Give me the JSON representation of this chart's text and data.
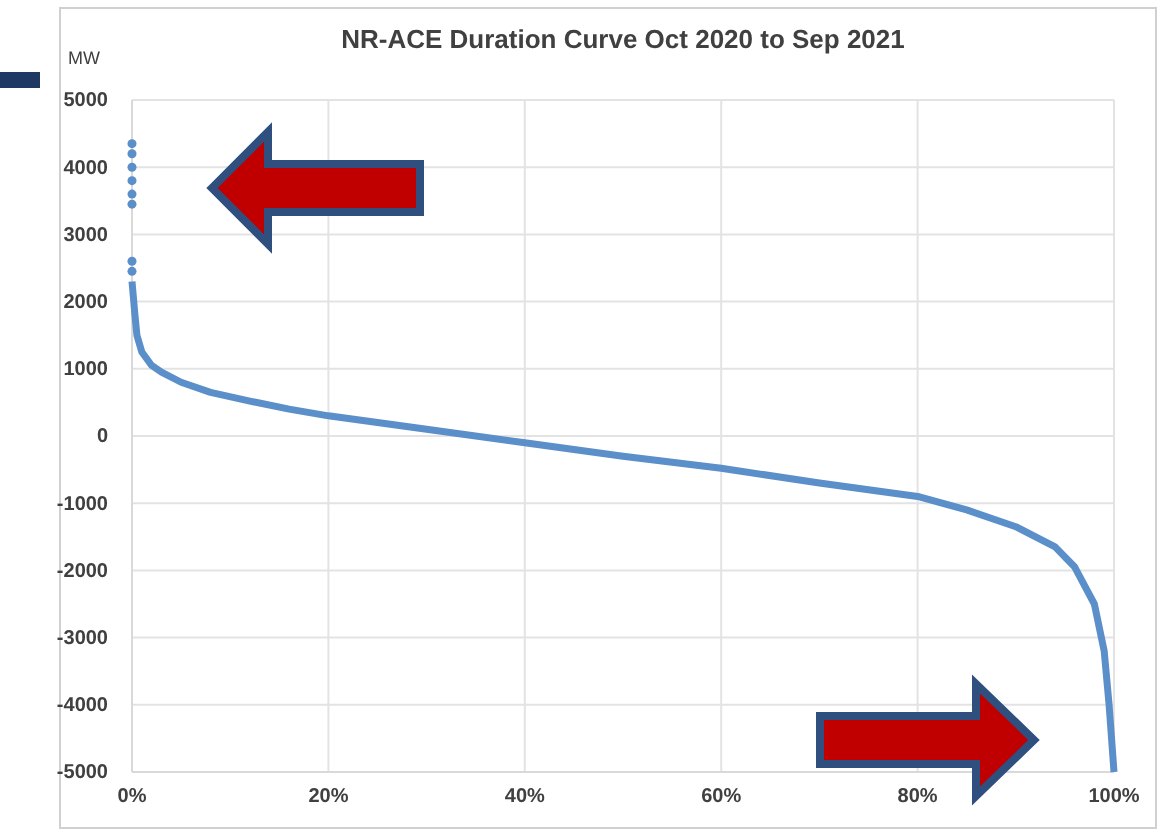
{
  "chart_data": {
    "type": "line",
    "title": "NR-ACE Duration Curve Oct 2020 to Sep 2021",
    "ylabel": "MW",
    "xlim": [
      0,
      100
    ],
    "xticks": [
      {
        "value": 0,
        "label": "0%"
      },
      {
        "value": 20,
        "label": "20%"
      },
      {
        "value": 40,
        "label": "40%"
      },
      {
        "value": 60,
        "label": "60%"
      },
      {
        "value": 80,
        "label": "80%"
      },
      {
        "value": 100,
        "label": "100%"
      }
    ],
    "ylim": [
      -5000,
      5000
    ],
    "yticks": [
      -5000,
      -4000,
      -3000,
      -2000,
      -1000,
      0,
      1000,
      2000,
      3000,
      4000,
      5000
    ],
    "grid": true,
    "line_style": "solid",
    "series": [
      {
        "color": "#5b8fc9",
        "marker": "none",
        "x": [
          0,
          0.3,
          0.5,
          1,
          2,
          3,
          5,
          8,
          12,
          16,
          20,
          30,
          40,
          50,
          60,
          70,
          80,
          85,
          90,
          94,
          96,
          98,
          99,
          99.5,
          100
        ],
        "values": [
          2300,
          1800,
          1500,
          1250,
          1050,
          950,
          800,
          650,
          520,
          400,
          300,
          100,
          -100,
          -300,
          -480,
          -700,
          -900,
          -1100,
          -1350,
          -1650,
          -1950,
          -2500,
          -3200,
          -4000,
          -5000
        ]
      },
      {
        "type": "scatter",
        "color": "#5b8fc9",
        "marker": "circle",
        "x": [
          0,
          0,
          0,
          0,
          0,
          0,
          0,
          0
        ],
        "values": [
          4350,
          4200,
          4000,
          3800,
          3600,
          3450,
          2600,
          2450
        ]
      }
    ]
  }
}
